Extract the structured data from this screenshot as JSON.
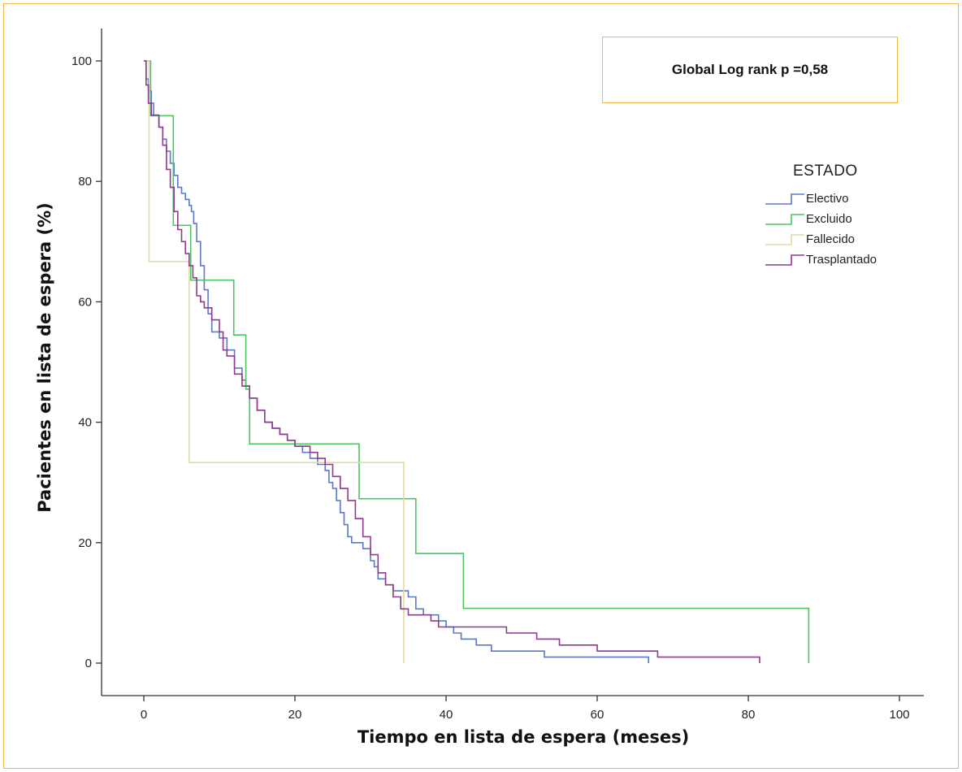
{
  "chart_data": {
    "type": "line",
    "annotation": "Global Log rank  p =0,58",
    "xlabel": "Tiempo en lista de espera (meses)",
    "ylabel": "Pacientes en lista de espera (%)",
    "xlim": [
      0,
      100
    ],
    "ylim": [
      0,
      100
    ],
    "xticks": [
      "0",
      "20",
      "40",
      "60",
      "80",
      "100"
    ],
    "yticks": [
      "0",
      "20",
      "40",
      "60",
      "80",
      "100"
    ],
    "legend_title": "ESTADO",
    "legend_position": "right",
    "grid": false,
    "series": [
      {
        "name": "Electivo",
        "color": "#5B79C6",
        "points": [
          [
            0,
            100
          ],
          [
            0.3,
            97
          ],
          [
            0.6,
            95
          ],
          [
            1,
            93
          ],
          [
            1.3,
            91
          ],
          [
            2,
            89
          ],
          [
            2.5,
            87
          ],
          [
            3,
            85
          ],
          [
            3.5,
            83
          ],
          [
            4,
            81
          ],
          [
            4.5,
            79
          ],
          [
            5,
            78
          ],
          [
            5.5,
            77
          ],
          [
            6,
            76
          ],
          [
            6.3,
            75
          ],
          [
            6.6,
            73
          ],
          [
            7,
            70
          ],
          [
            7.5,
            66
          ],
          [
            8,
            62
          ],
          [
            8.5,
            58
          ],
          [
            9,
            55
          ],
          [
            10,
            54
          ],
          [
            11,
            52
          ],
          [
            12,
            49
          ],
          [
            13,
            47
          ],
          [
            13.5,
            46
          ],
          [
            14,
            44
          ],
          [
            15,
            42
          ],
          [
            16,
            40
          ],
          [
            17,
            39
          ],
          [
            18,
            38
          ],
          [
            19,
            37
          ],
          [
            20,
            36
          ],
          [
            21,
            35
          ],
          [
            22,
            34
          ],
          [
            23,
            33
          ],
          [
            24,
            32
          ],
          [
            24.5,
            30
          ],
          [
            25,
            29
          ],
          [
            25.5,
            27
          ],
          [
            26,
            25
          ],
          [
            26.5,
            23
          ],
          [
            27,
            21
          ],
          [
            27.5,
            20
          ],
          [
            28,
            20
          ],
          [
            29,
            19
          ],
          [
            30,
            17
          ],
          [
            30.5,
            16
          ],
          [
            31,
            14
          ],
          [
            32,
            13
          ],
          [
            33,
            12
          ],
          [
            34,
            12
          ],
          [
            35,
            11
          ],
          [
            36,
            9
          ],
          [
            37,
            8
          ],
          [
            38,
            8
          ],
          [
            39,
            7
          ],
          [
            40,
            6
          ],
          [
            41,
            5
          ],
          [
            42,
            4
          ],
          [
            43,
            4
          ],
          [
            44,
            3
          ],
          [
            45,
            3
          ],
          [
            46,
            2
          ],
          [
            48,
            2
          ],
          [
            50,
            2
          ],
          [
            53,
            1
          ],
          [
            60,
            1
          ],
          [
            66.8,
            1
          ],
          [
            66.8,
            0
          ]
        ]
      },
      {
        "name": "Excluido",
        "color": "#4CC462",
        "points": [
          [
            0,
            100
          ],
          [
            0.9,
            100
          ],
          [
            0.9,
            90.9
          ],
          [
            3.9,
            90.9
          ],
          [
            3.9,
            72.7
          ],
          [
            6.2,
            72.7
          ],
          [
            6.2,
            63.6
          ],
          [
            11.9,
            63.6
          ],
          [
            11.9,
            54.5
          ],
          [
            13.5,
            54.5
          ],
          [
            13.5,
            45.5
          ],
          [
            14,
            45.5
          ],
          [
            14,
            36.4
          ],
          [
            28.5,
            36.4
          ],
          [
            28.5,
            27.3
          ],
          [
            36,
            27.3
          ],
          [
            36,
            18.2
          ],
          [
            42.3,
            18.2
          ],
          [
            42.3,
            9.1
          ],
          [
            88,
            9.1
          ],
          [
            88,
            0
          ]
        ]
      },
      {
        "name": "Fallecido",
        "color": "#E0D9A8",
        "points": [
          [
            0,
            100
          ],
          [
            0.7,
            100
          ],
          [
            0.7,
            66.7
          ],
          [
            6,
            66.7
          ],
          [
            6,
            33.3
          ],
          [
            34.4,
            33.3
          ],
          [
            34.4,
            0
          ]
        ]
      },
      {
        "name": "Trasplantado",
        "color": "#8E3A8E",
        "points": [
          [
            0,
            100
          ],
          [
            0.3,
            96
          ],
          [
            0.6,
            93
          ],
          [
            1,
            91
          ],
          [
            2,
            89
          ],
          [
            2.5,
            86
          ],
          [
            3,
            82
          ],
          [
            3.5,
            79
          ],
          [
            4,
            75
          ],
          [
            4.5,
            72
          ],
          [
            5,
            70
          ],
          [
            5.5,
            68
          ],
          [
            6,
            66
          ],
          [
            6.5,
            64
          ],
          [
            7,
            61
          ],
          [
            7.5,
            60
          ],
          [
            8,
            59
          ],
          [
            9,
            57
          ],
          [
            10,
            55
          ],
          [
            10.5,
            52
          ],
          [
            11,
            51
          ],
          [
            12,
            48
          ],
          [
            13,
            46
          ],
          [
            14,
            44
          ],
          [
            15,
            42
          ],
          [
            16,
            40
          ],
          [
            17,
            39
          ],
          [
            18,
            38
          ],
          [
            19,
            37
          ],
          [
            20,
            36
          ],
          [
            21,
            36
          ],
          [
            22,
            35
          ],
          [
            23,
            34
          ],
          [
            24,
            33
          ],
          [
            25,
            31
          ],
          [
            26,
            29
          ],
          [
            27,
            27
          ],
          [
            28,
            24
          ],
          [
            29,
            21
          ],
          [
            30,
            18
          ],
          [
            31,
            15
          ],
          [
            32,
            13
          ],
          [
            33,
            11
          ],
          [
            34,
            9
          ],
          [
            35,
            8
          ],
          [
            37,
            8
          ],
          [
            38,
            7
          ],
          [
            39,
            6
          ],
          [
            45,
            6
          ],
          [
            48,
            5
          ],
          [
            52,
            4
          ],
          [
            55,
            3
          ],
          [
            60,
            2
          ],
          [
            68,
            1
          ],
          [
            75,
            1
          ],
          [
            81.5,
            1
          ],
          [
            81.5,
            0
          ]
        ]
      }
    ]
  }
}
